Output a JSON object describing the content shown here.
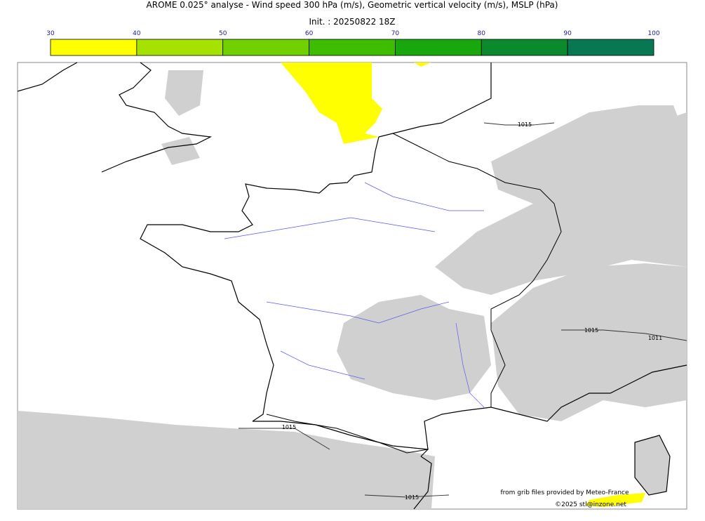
{
  "header": {
    "title": "AROME 0.025° analyse - Wind speed 300 hPa (m/s), Geometric vertical velocity (m/s), MSLP (hPa)",
    "subtitle": "Init. : 20250822 18Z"
  },
  "colorbar": {
    "ticks": [
      30,
      40,
      50,
      60,
      70,
      80,
      90,
      100
    ],
    "colors": [
      "#ffff00",
      "#a6e200",
      "#70d000",
      "#3dbc00",
      "#18a80e",
      "#0a8a2c",
      "#087852"
    ]
  },
  "map": {
    "isobar_labels": [
      "1015",
      "1015",
      "1011",
      "1015",
      "1015"
    ],
    "credits": [
      "from grib files provided by Meteo-France",
      "©2025 stl@inzone.net"
    ]
  }
}
